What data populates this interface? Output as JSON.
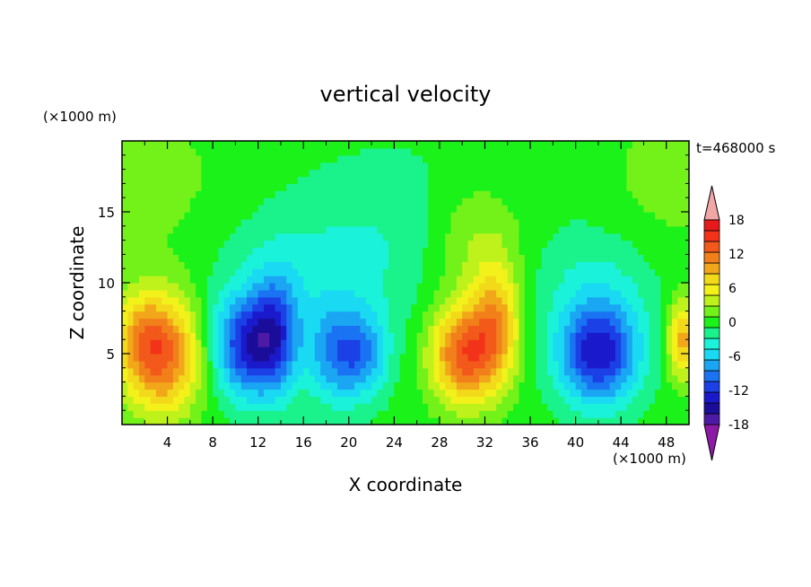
{
  "chart_data": {
    "type": "heatmap",
    "title": "vertical velocity",
    "xlabel": "X coordinate",
    "ylabel": "Z coordinate",
    "x_unit": "(×1000 m)",
    "y_unit": "(×1000 m)",
    "time_label": "t=468000 s",
    "xlim": [
      0,
      50
    ],
    "ylim": [
      0,
      20
    ],
    "x_ticks": [
      4,
      8,
      12,
      16,
      20,
      24,
      28,
      32,
      36,
      40,
      44,
      48
    ],
    "y_ticks": [
      5,
      10,
      15
    ],
    "colorbar": {
      "levels": [
        -20,
        -18,
        -16,
        -14,
        -12,
        -10,
        -8,
        -6,
        -4,
        -2,
        0,
        2,
        4,
        6,
        8,
        10,
        12,
        14,
        16,
        18,
        20
      ],
      "tick_labels": [
        18,
        12,
        6,
        0,
        -6,
        -12,
        -18
      ],
      "colors": [
        "#8c1aa6",
        "#4d1aa6",
        "#1a0d99",
        "#1a1acc",
        "#1a40e6",
        "#1a73f2",
        "#1aa6f2",
        "#1ad9f2",
        "#1af2d9",
        "#1af28c",
        "#1af21a",
        "#73f21a",
        "#bff21a",
        "#f2f21a",
        "#f2d91a",
        "#f2a61a",
        "#f2801a",
        "#f2591a",
        "#f2331a",
        "#e61a1a",
        "#f2a6a6"
      ]
    },
    "cells": [
      {
        "x": 3.5,
        "z": 5,
        "sx": 2.5,
        "sz": 3,
        "w": 14
      },
      {
        "x": 1.5,
        "z": 6.5,
        "sx": 1.5,
        "sz": 2,
        "w": 4
      },
      {
        "x": 11,
        "z": 5.5,
        "sx": 2.2,
        "sz": 2.5,
        "w": -12
      },
      {
        "x": 13.5,
        "z": 6.5,
        "sx": 1.5,
        "sz": 3,
        "w": -8
      },
      {
        "x": 19,
        "z": 5,
        "sx": 1.8,
        "sz": 2.5,
        "w": -8
      },
      {
        "x": 21.5,
        "z": 5,
        "sx": 1.5,
        "sz": 2,
        "w": -6
      },
      {
        "x": 16,
        "z": 10,
        "sx": 6,
        "sz": 4,
        "w": -3
      },
      {
        "x": 30,
        "z": 5,
        "sx": 2,
        "sz": 2.5,
        "w": 14
      },
      {
        "x": 33,
        "z": 7,
        "sx": 1.5,
        "sz": 3,
        "w": 10
      },
      {
        "x": 31,
        "z": 13,
        "sx": 3,
        "sz": 3,
        "w": 4
      },
      {
        "x": 42,
        "z": 5,
        "sx": 2.5,
        "sz": 2.5,
        "w": -14
      },
      {
        "x": 42,
        "z": 10,
        "sx": 4,
        "sz": 3,
        "w": -3
      },
      {
        "x": 49.5,
        "z": 6,
        "sx": 1,
        "sz": 2,
        "w": 10
      },
      {
        "x": 25,
        "z": 14,
        "sx": 6,
        "sz": 4,
        "w": -2
      },
      {
        "x": 2,
        "z": 17,
        "sx": 6,
        "sz": 4,
        "w": 2
      },
      {
        "x": 48,
        "z": 17,
        "sx": 4,
        "sz": 4,
        "w": 2
      }
    ]
  }
}
